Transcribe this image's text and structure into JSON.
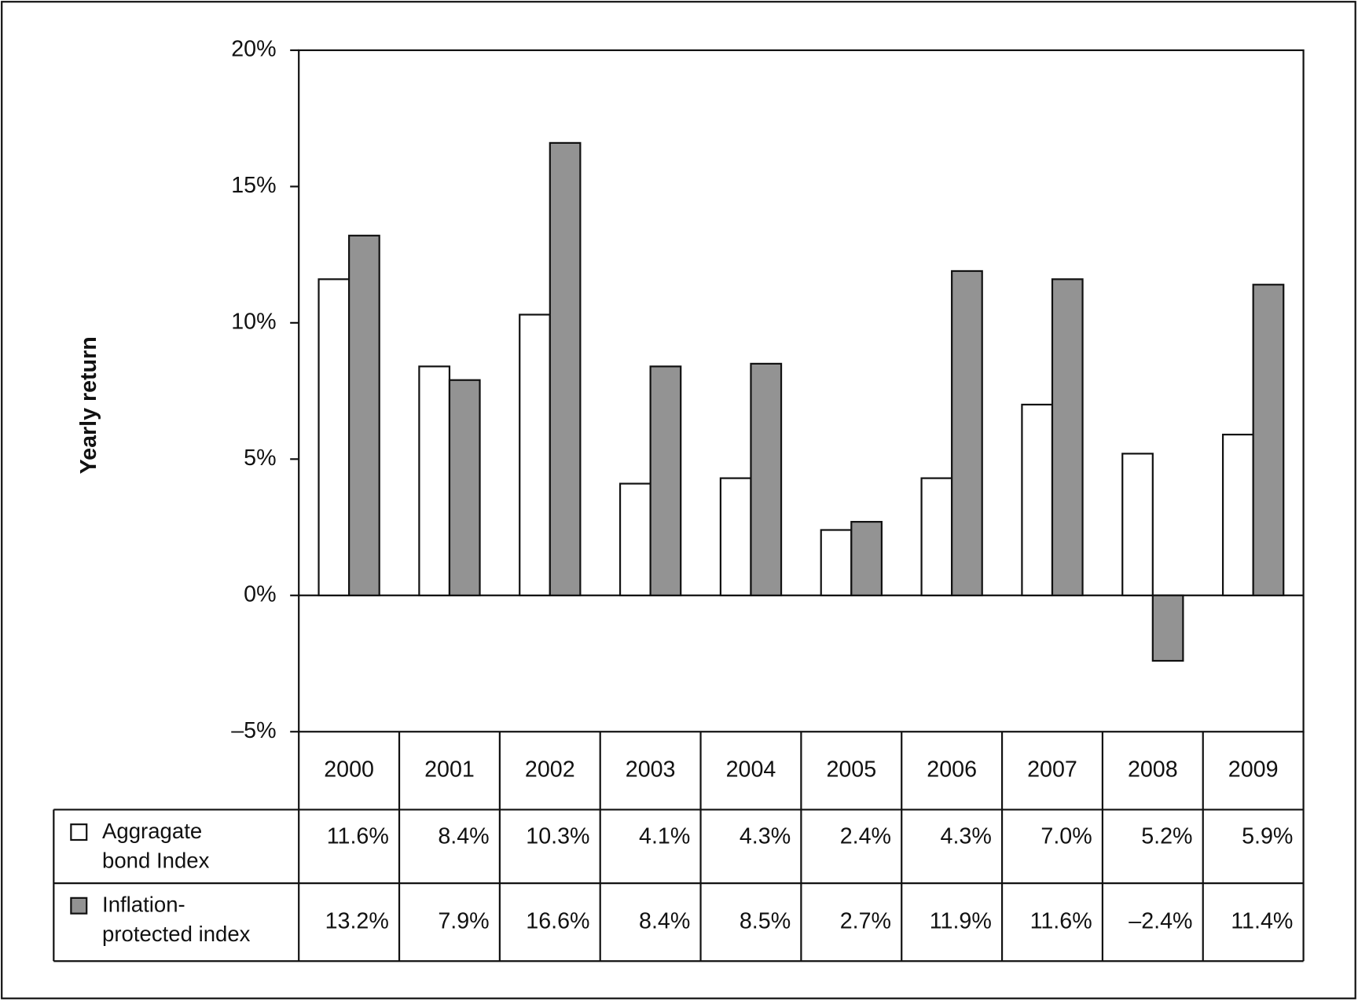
{
  "chart_data": {
    "type": "bar",
    "y_label": "Yearly return",
    "categories": [
      "2000",
      "2001",
      "2002",
      "2003",
      "2004",
      "2005",
      "2006",
      "2007",
      "2008",
      "2009"
    ],
    "series": [
      {
        "name": "Aggragate bond Index",
        "color": "#ffffff",
        "values": [
          11.6,
          8.4,
          10.3,
          4.1,
          4.3,
          2.4,
          4.3,
          7.0,
          5.2,
          5.9
        ],
        "value_labels": [
          "11.6%",
          "8.4%",
          "10.3%",
          "4.1%",
          "4.3%",
          "2.4%",
          "4.3%",
          "7.0%",
          "5.2%",
          "5.9%"
        ]
      },
      {
        "name": "Inflation-protected index",
        "color": "#939393",
        "values": [
          13.2,
          7.9,
          16.6,
          8.4,
          8.5,
          2.7,
          11.9,
          11.6,
          -2.4,
          11.4
        ],
        "value_labels": [
          "13.2%",
          "7.9%",
          "16.6%",
          "8.4%",
          "8.5%",
          "2.7%",
          "11.9%",
          "11.6%",
          "–2.4%",
          "11.4%"
        ]
      }
    ],
    "ylim": [
      -5,
      20
    ],
    "yticks": [
      {
        "value": -5,
        "label": "–5%"
      },
      {
        "value": 0,
        "label": "0%"
      },
      {
        "value": 5,
        "label": "5%"
      },
      {
        "value": 10,
        "label": "10%"
      },
      {
        "value": 15,
        "label": "15%"
      },
      {
        "value": 20,
        "label": "20%"
      }
    ]
  }
}
